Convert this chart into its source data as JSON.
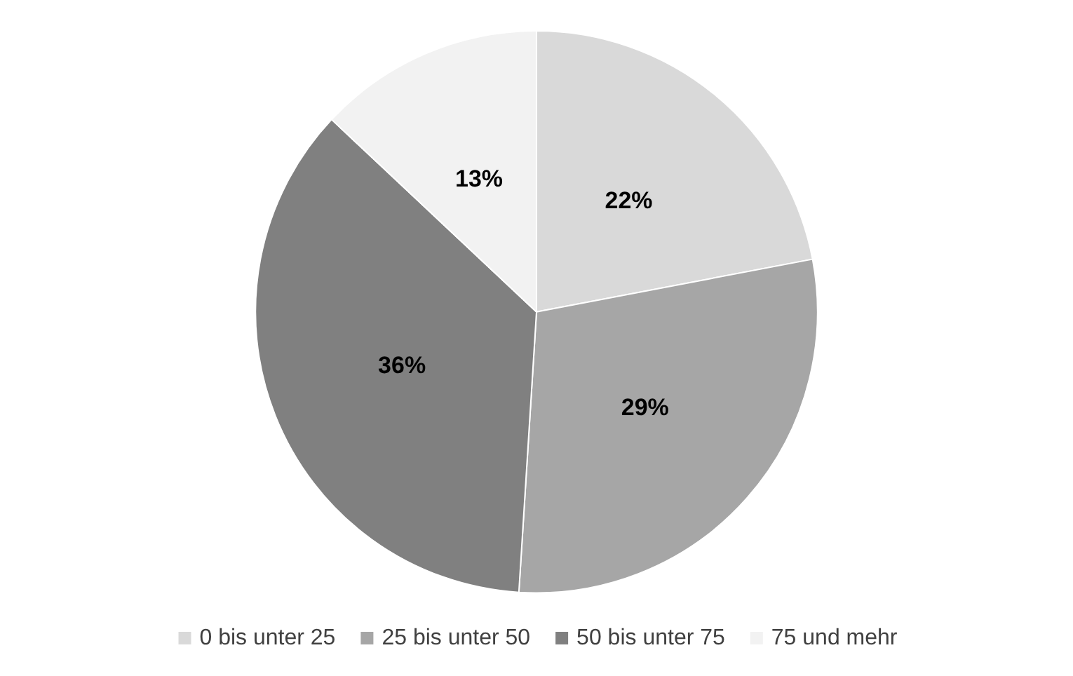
{
  "chart_data": {
    "type": "pie",
    "categories": [
      "0 bis unter 25",
      "25 bis unter 50",
      "50 bis unter 75",
      "75 und mehr"
    ],
    "values": [
      22,
      29,
      36,
      13
    ],
    "colors": [
      "#d9d9d9",
      "#a6a6a6",
      "#808080",
      "#f2f2f2"
    ],
    "value_labels": [
      "22%",
      "29%",
      "36%",
      "13%"
    ],
    "legend": "bottom"
  }
}
